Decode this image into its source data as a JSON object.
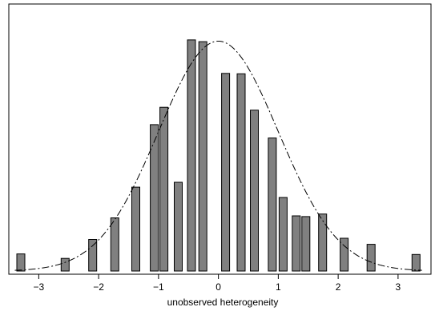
{
  "chart_data": {
    "type": "bar",
    "xlabel": "unobserved heterogeneity",
    "ylabel": "",
    "xlim": [
      -3.5,
      3.55
    ],
    "ylim": [
      0,
      0.145
    ],
    "x_ticks": [
      -3,
      -2,
      -1,
      0,
      1,
      2,
      3
    ],
    "x_tick_labels": [
      "−3",
      "−2",
      "−1",
      "0",
      "1",
      "2",
      "3"
    ],
    "grid": false,
    "colors": {
      "bar_fill": "#808080",
      "bar_stroke": "#000000",
      "curve": "#000000",
      "frame": "#000000"
    },
    "bars": {
      "x": [
        -3.3,
        -2.56,
        -2.1,
        -1.73,
        -1.38,
        -1.07,
        -0.91,
        -0.67,
        -0.45,
        -0.26,
        0.12,
        0.38,
        0.6,
        0.9,
        1.08,
        1.3,
        1.46,
        1.74,
        2.1,
        2.55,
        3.3
      ],
      "values": [
        0.0095,
        0.007,
        0.0175,
        0.0295,
        0.0465,
        0.0812,
        0.0908,
        0.0492,
        0.1282,
        0.1272,
        0.1096,
        0.1094,
        0.0892,
        0.0738,
        0.0408,
        0.0306,
        0.0302,
        0.0316,
        0.0182,
        0.0148,
        0.0092
      ]
    },
    "curve": {
      "type": "normal-density",
      "mean": 0,
      "sd": 1,
      "style": "dash-dot"
    }
  }
}
